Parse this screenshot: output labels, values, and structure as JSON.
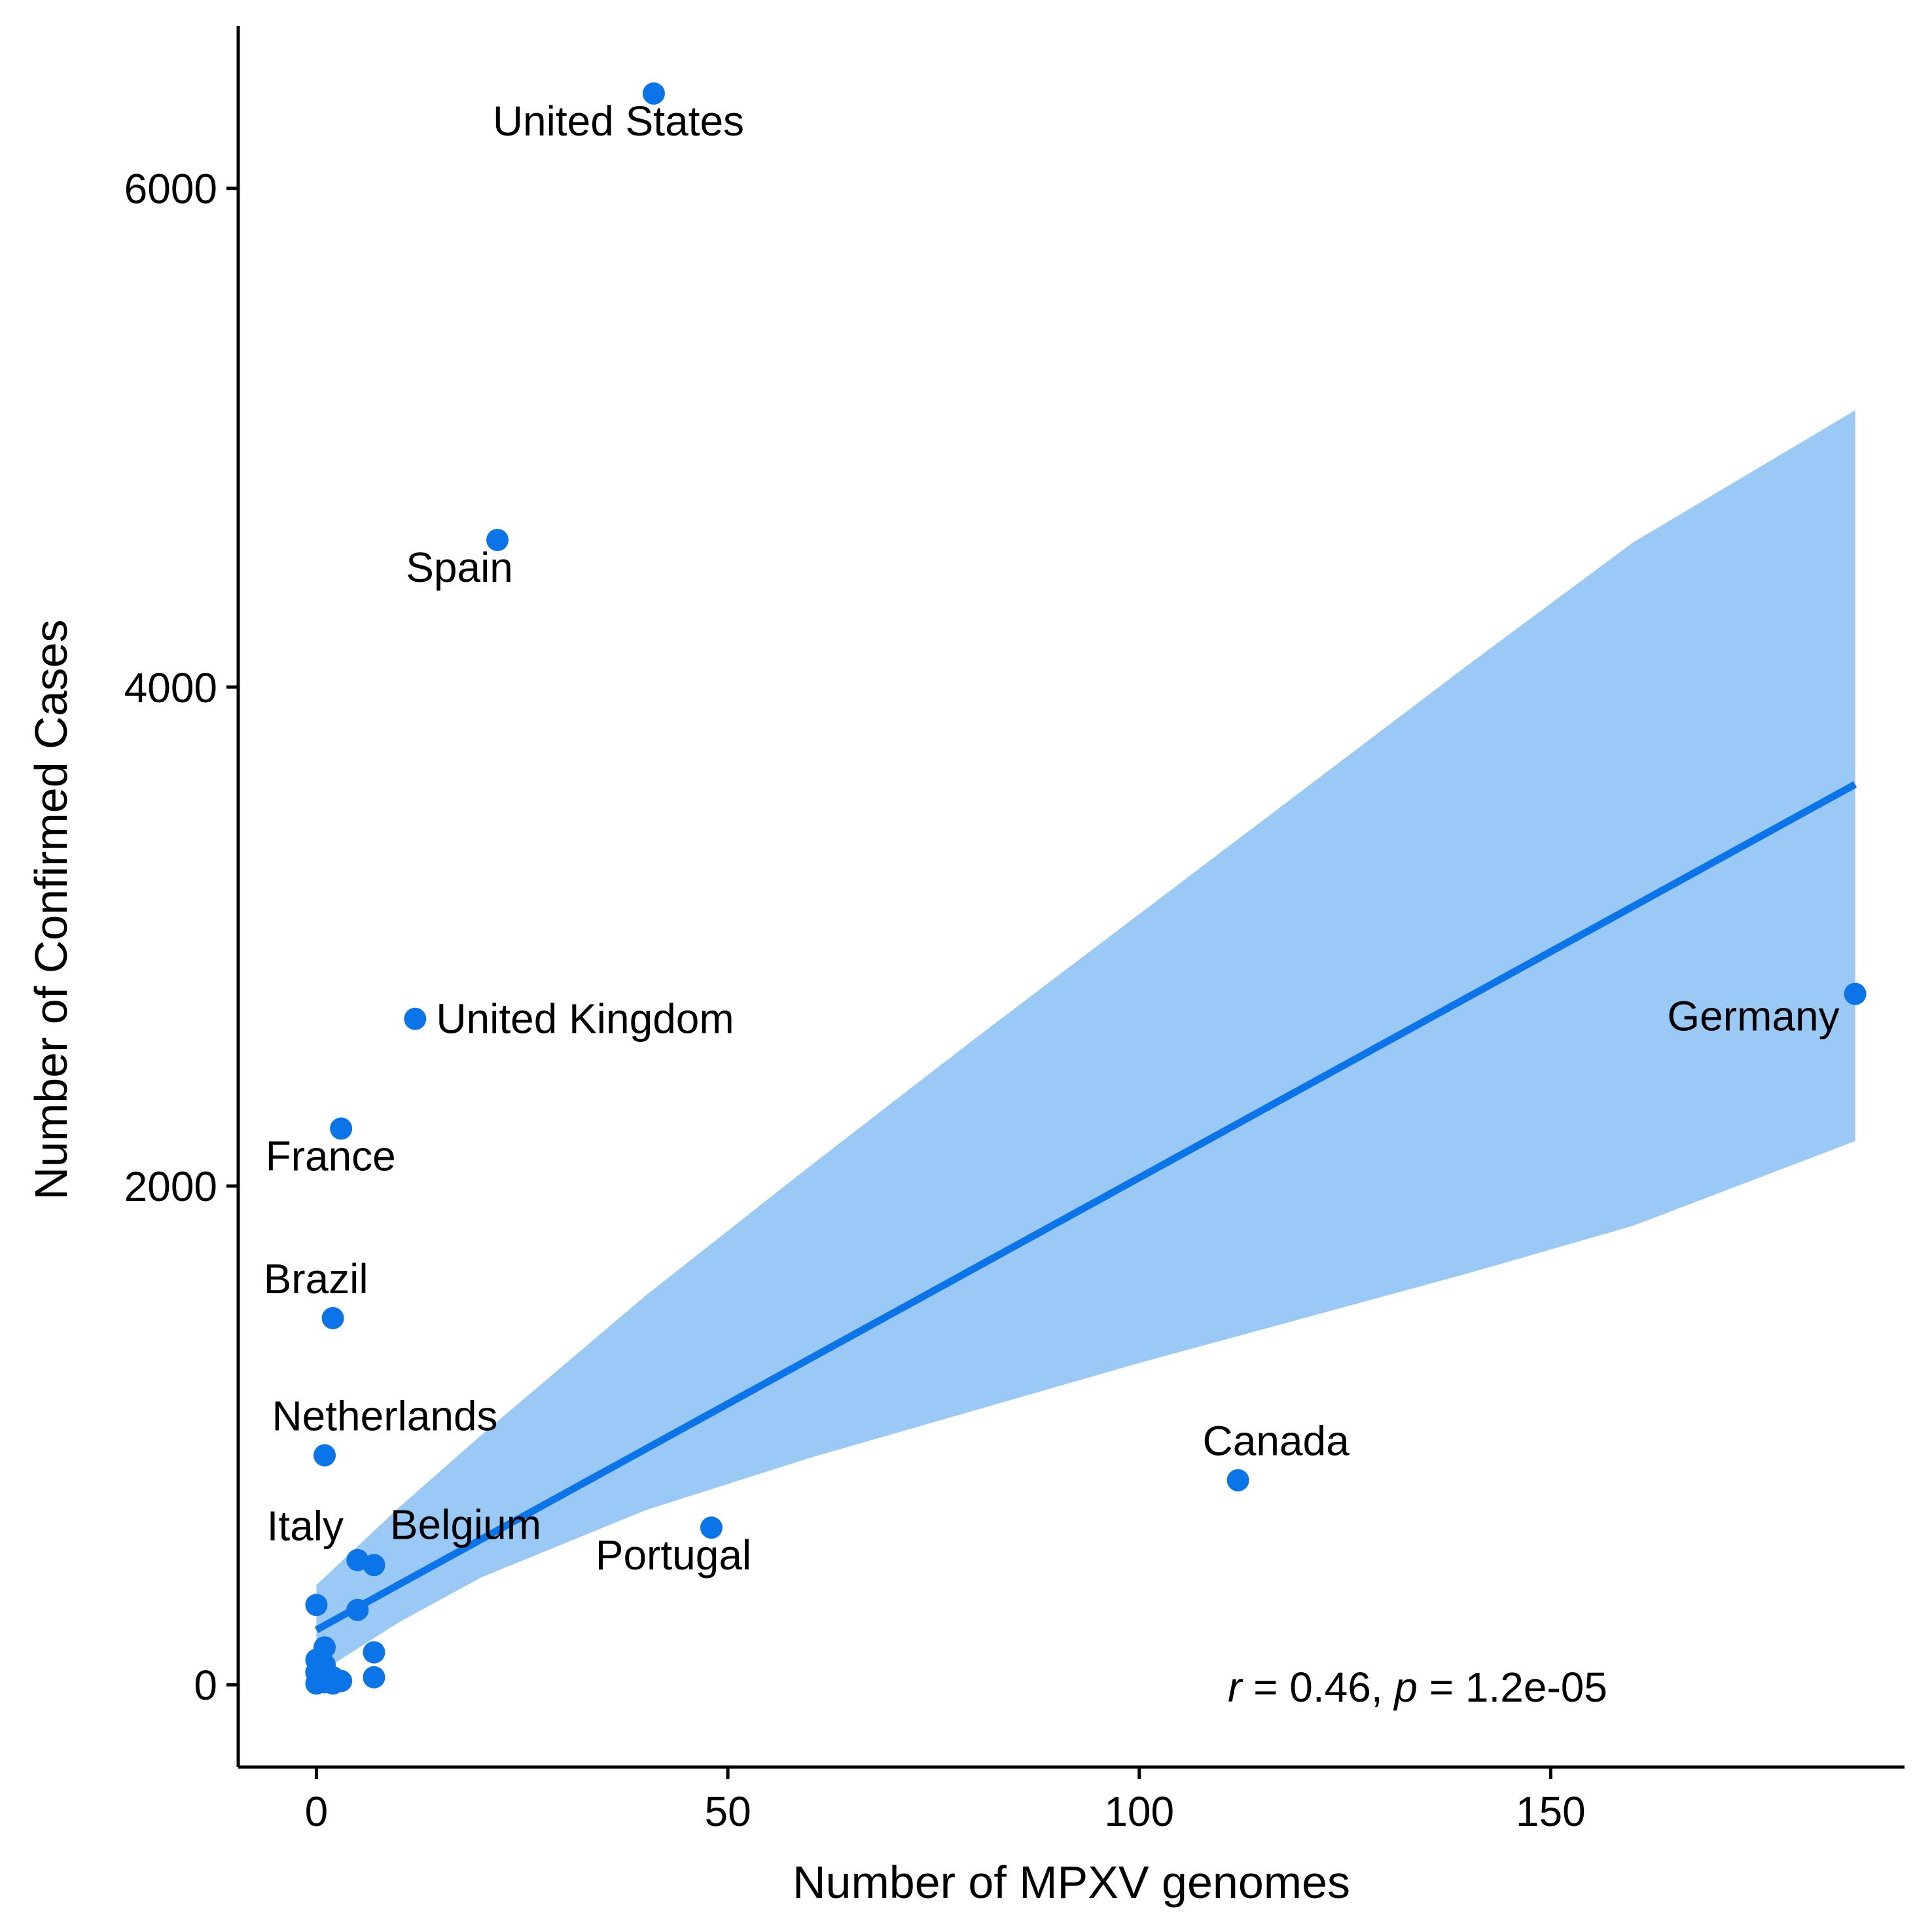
{
  "chart_data": {
    "type": "scatter",
    "title": "",
    "xlabel": "Number of MPXV genomes",
    "ylabel": "Number of Confirmed Cases",
    "xlim": [
      -9.5,
      193
    ],
    "ylim": [
      -330,
      6650
    ],
    "xticks": [
      0,
      50,
      100,
      150
    ],
    "yticks": [
      0,
      2000,
      4000,
      6000
    ],
    "grid": false,
    "legend": "none",
    "colors": {
      "points": "#0A74E8",
      "fit_line": "#0A74E8",
      "confidence_band": "#9AC9F6"
    },
    "points": [
      {
        "x": 41,
        "y": 6380,
        "label": "United States"
      },
      {
        "x": 22,
        "y": 4590,
        "label": "Spain"
      },
      {
        "x": 12,
        "y": 2670,
        "label": "United Kingdom"
      },
      {
        "x": 3,
        "y": 2230,
        "label": "France"
      },
      {
        "x": 2,
        "y": 1470,
        "label": "Brazil"
      },
      {
        "x": 1,
        "y": 920,
        "label": "Netherlands"
      },
      {
        "x": 112,
        "y": 820,
        "label": "Canada"
      },
      {
        "x": 48,
        "y": 630,
        "label": "Portugal"
      },
      {
        "x": 187,
        "y": 2770,
        "label": "Germany"
      },
      {
        "x": 5,
        "y": 500,
        "label": "Italy"
      },
      {
        "x": 7,
        "y": 480,
        "label": "Belgium"
      },
      {
        "x": 0,
        "y": 320,
        "label": ""
      },
      {
        "x": 5,
        "y": 300,
        "label": ""
      },
      {
        "x": 1,
        "y": 150,
        "label": ""
      },
      {
        "x": 7,
        "y": 130,
        "label": ""
      },
      {
        "x": 0,
        "y": 100,
        "label": ""
      },
      {
        "x": 1,
        "y": 80,
        "label": ""
      },
      {
        "x": 0,
        "y": 50,
        "label": ""
      },
      {
        "x": 2,
        "y": 30,
        "label": ""
      },
      {
        "x": 7,
        "y": 30,
        "label": ""
      },
      {
        "x": 3,
        "y": 15,
        "label": ""
      },
      {
        "x": 1,
        "y": 10,
        "label": ""
      },
      {
        "x": 0,
        "y": 5,
        "label": ""
      },
      {
        "x": 2,
        "y": 5,
        "label": ""
      }
    ],
    "fit": {
      "x": [
        0,
        187
      ],
      "y": [
        220,
        3610
      ]
    },
    "confidence_band": {
      "x": [
        0,
        10,
        20,
        40,
        60,
        80,
        100,
        120,
        140,
        160,
        187
      ],
      "upper": [
        400,
        710,
        1000,
        1560,
        2080,
        2590,
        3090,
        3590,
        4090,
        4580,
        5110
      ],
      "lower": [
        40,
        250,
        430,
        700,
        910,
        1100,
        1290,
        1470,
        1650,
        1840,
        2180
      ]
    },
    "annotation": {
      "r_symbol": "r",
      "r_value": " = 0.46, ",
      "p_symbol": "p",
      "p_value": " = 1.2e-05"
    }
  }
}
